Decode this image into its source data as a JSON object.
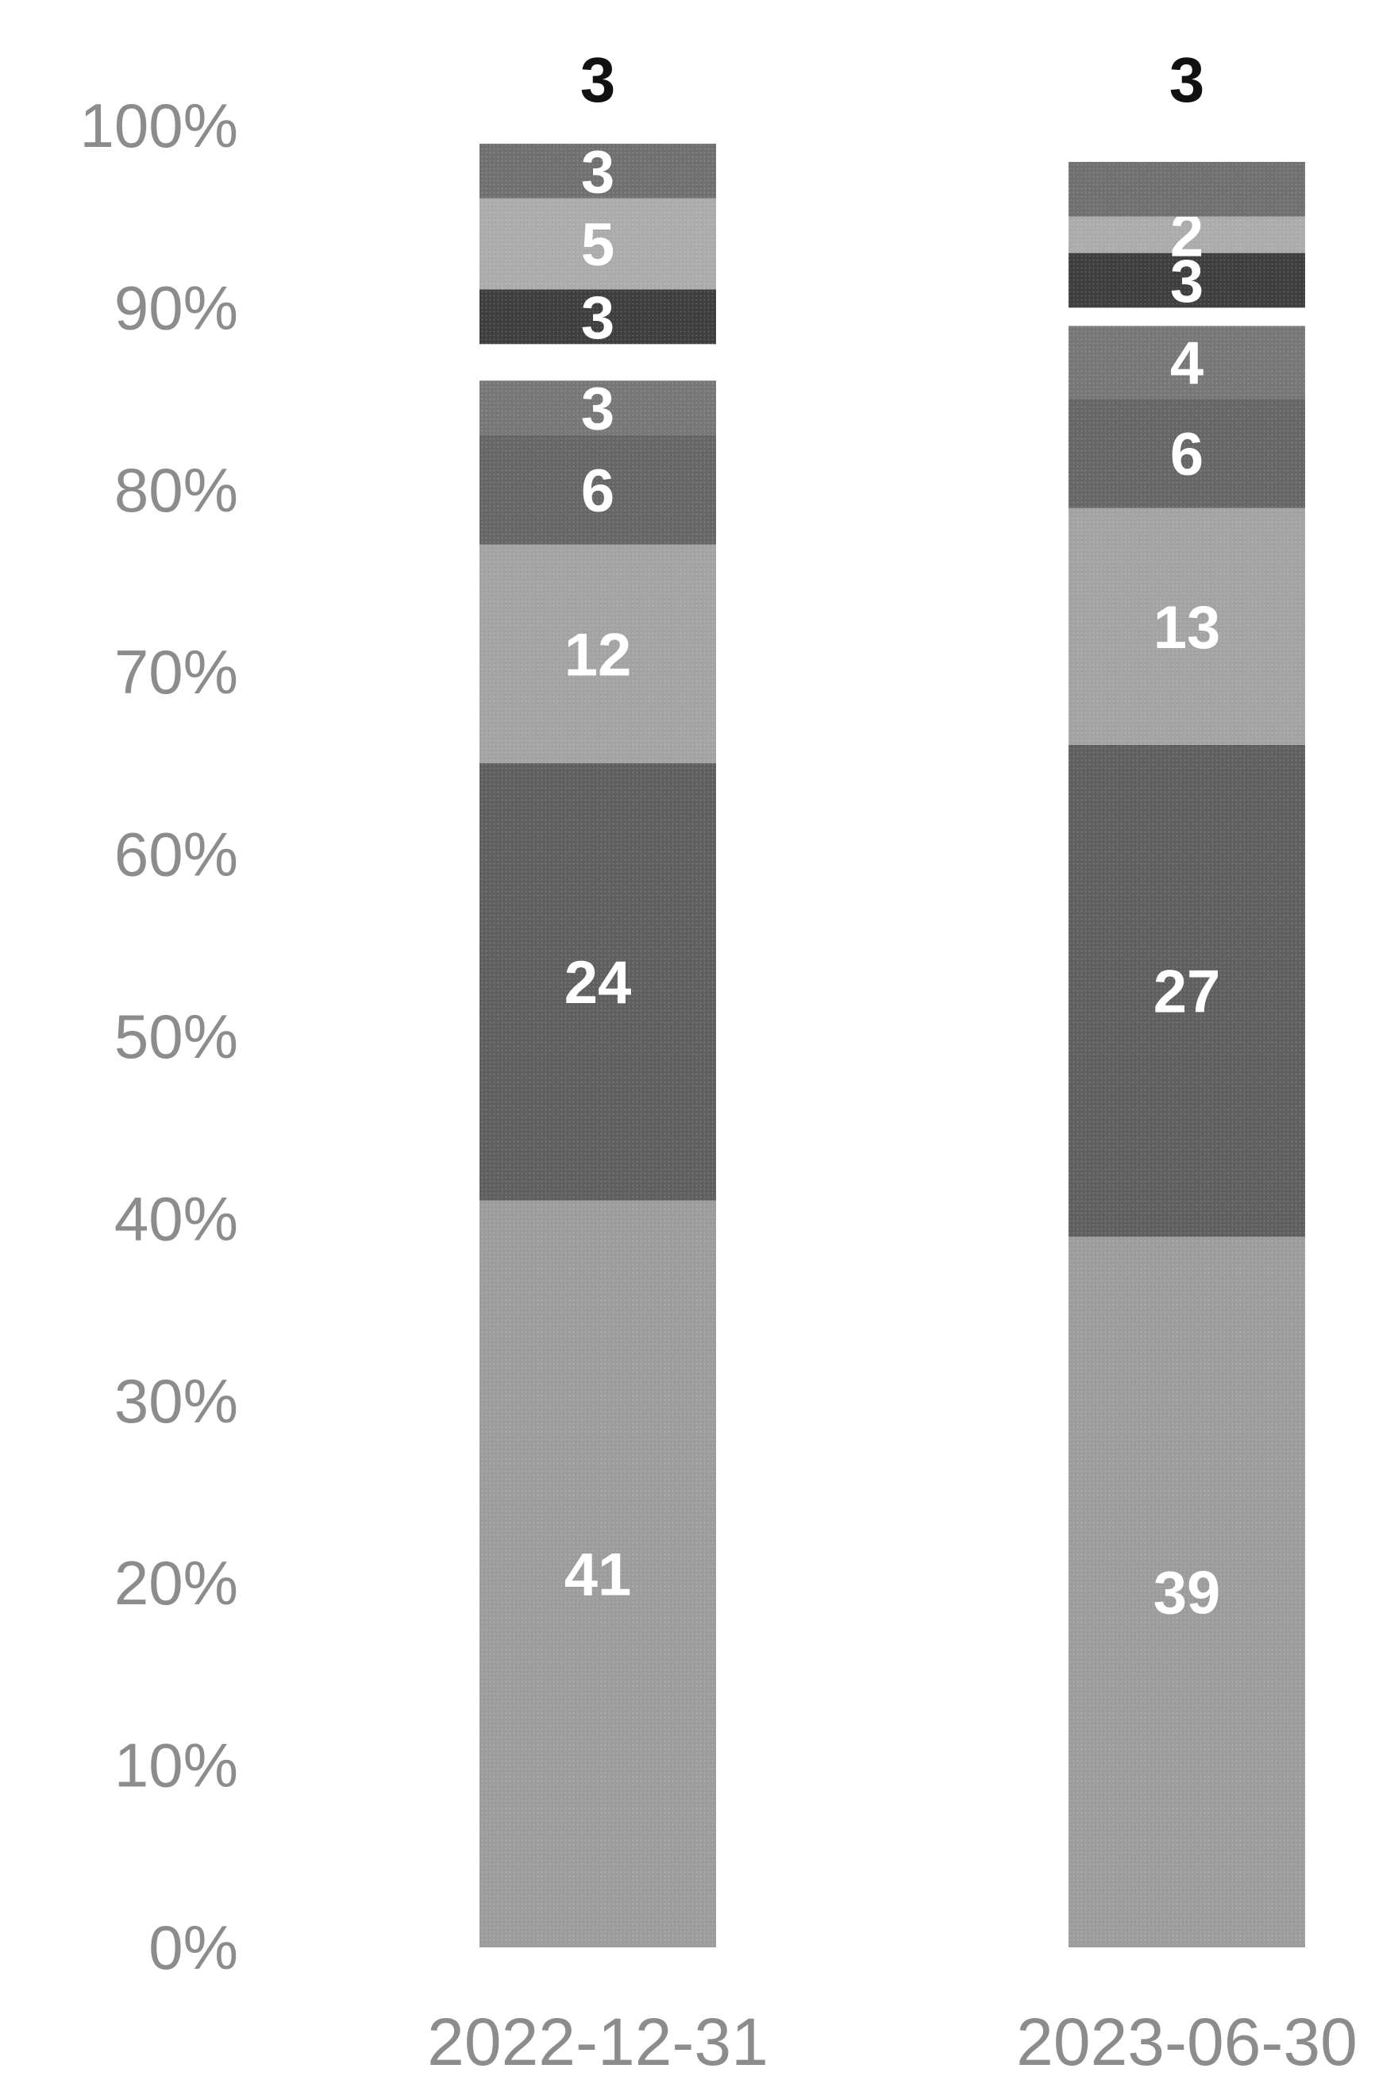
{
  "chart_data": {
    "type": "bar",
    "stacked": true,
    "normalized": true,
    "categories": [
      "2022-12-31",
      "2023-06-30"
    ],
    "yticks": [
      "0%",
      "10%",
      "20%",
      "30%",
      "40%",
      "50%",
      "60%",
      "70%",
      "80%",
      "90%",
      "100%"
    ],
    "ylim": [
      0,
      100
    ],
    "grid": false,
    "series": [
      {
        "values": [
          41,
          39
        ],
        "labels": [
          "41",
          "39"
        ],
        "color": "#9c9c9c"
      },
      {
        "values": [
          24,
          27
        ],
        "labels": [
          "24",
          "27"
        ],
        "color": "#5f5f5f"
      },
      {
        "values": [
          12,
          13
        ],
        "labels": [
          "12",
          "13"
        ],
        "color": "#a3a3a3"
      },
      {
        "values": [
          6,
          6
        ],
        "labels": [
          "6",
          "6"
        ],
        "color": "#666666"
      },
      {
        "values": [
          3,
          4
        ],
        "labels": [
          "3",
          "4"
        ],
        "color": "#777777"
      },
      {
        "values": [
          2,
          1
        ],
        "labels": [
          "",
          ""
        ],
        "color": "#ffffff"
      },
      {
        "values": [
          3,
          3
        ],
        "labels": [
          "3",
          "3"
        ],
        "color": "#3e3e3e"
      },
      {
        "values": [
          5,
          2
        ],
        "labels": [
          "5",
          "2"
        ],
        "color": "#ababab"
      },
      {
        "values": [
          3,
          3
        ],
        "labels": [
          "3",
          ""
        ],
        "color": "#707070"
      }
    ],
    "top_labels": [
      "3",
      "3"
    ]
  }
}
